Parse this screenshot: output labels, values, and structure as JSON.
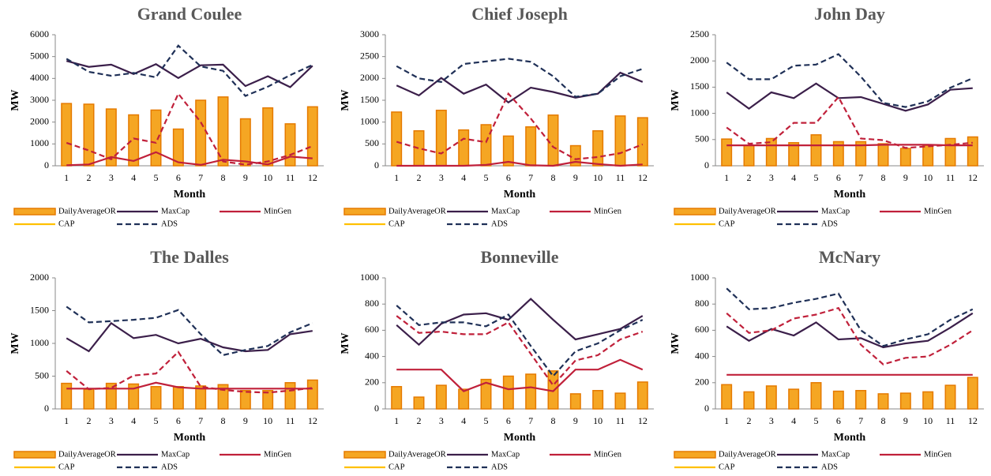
{
  "chart_data": [
    {
      "type": "combo",
      "title": "Grand Coulee",
      "x_label": "Month",
      "y_label": "MW",
      "categories": [
        1,
        2,
        3,
        4,
        5,
        6,
        7,
        8,
        9,
        10,
        11,
        12
      ],
      "ylim": [
        0,
        6000
      ],
      "yticks": [
        0,
        1000,
        2000,
        3000,
        4000,
        5000,
        6000
      ],
      "series": [
        {
          "name": "DailyAverageOR",
          "kind": "bar",
          "color": "#f5a623",
          "values": [
            2850,
            2820,
            2600,
            2330,
            2550,
            1680,
            3000,
            3150,
            2150,
            2650,
            1920,
            2700
          ]
        },
        {
          "name": "MaxCap",
          "kind": "line",
          "color": "#3b1f4a",
          "values": [
            4800,
            4530,
            4630,
            4200,
            4650,
            4020,
            4600,
            4630,
            3650,
            4100,
            3600,
            4580
          ]
        },
        {
          "name": "MinGen",
          "kind": "line",
          "color": "#c0203a",
          "values": [
            20,
            60,
            400,
            220,
            620,
            160,
            40,
            280,
            200,
            60,
            420,
            340
          ]
        },
        {
          "name": "CAP",
          "kind": "line",
          "color": "#ffc000",
          "values": [
            null,
            null,
            null,
            null,
            null,
            null,
            null,
            null,
            null,
            null,
            null,
            null
          ]
        },
        {
          "name": "ADS",
          "kind": "line",
          "dash": true,
          "color": "#1f3057",
          "values": [
            4900,
            4300,
            4120,
            4250,
            4050,
            5500,
            4550,
            4350,
            3200,
            3620,
            4150,
            4620
          ]
        },
        {
          "kind": "line",
          "dash": true,
          "color": "#c0203a",
          "values": [
            1050,
            700,
            300,
            1250,
            1050,
            3300,
            2000,
            200,
            50,
            200,
            500,
            900
          ]
        }
      ]
    },
    {
      "type": "combo",
      "title": "Chief Joseph",
      "x_label": "Month",
      "y_label": "MW",
      "categories": [
        1,
        2,
        3,
        4,
        5,
        6,
        7,
        8,
        9,
        10,
        11,
        12
      ],
      "ylim": [
        0,
        3000
      ],
      "yticks": [
        0,
        500,
        1000,
        1500,
        2000,
        2500,
        3000
      ],
      "series": [
        {
          "name": "DailyAverageOR",
          "kind": "bar",
          "color": "#f5a623",
          "values": [
            1230,
            800,
            1270,
            820,
            940,
            680,
            890,
            1160,
            460,
            800,
            1140,
            1100
          ]
        },
        {
          "name": "MaxCap",
          "kind": "line",
          "color": "#3b1f4a",
          "values": [
            1840,
            1610,
            2010,
            1650,
            1860,
            1450,
            1790,
            1690,
            1560,
            1650,
            2130,
            1920
          ]
        },
        {
          "name": "MinGen",
          "kind": "line",
          "color": "#c0203a",
          "values": [
            0,
            0,
            0,
            0,
            20,
            90,
            10,
            0,
            90,
            40,
            0,
            30
          ]
        },
        {
          "name": "CAP",
          "kind": "line",
          "color": "#ffc000",
          "values": [
            null,
            null,
            null,
            null,
            null,
            null,
            null,
            null,
            null,
            null,
            null,
            null
          ]
        },
        {
          "name": "ADS",
          "kind": "line",
          "dash": true,
          "color": "#1f3057",
          "values": [
            2280,
            2000,
            1920,
            2330,
            2390,
            2450,
            2380,
            2050,
            1580,
            1650,
            2050,
            2220
          ]
        },
        {
          "kind": "line",
          "dash": true,
          "color": "#c0203a",
          "values": [
            550,
            400,
            280,
            620,
            540,
            1650,
            1080,
            430,
            150,
            200,
            290,
            490
          ]
        }
      ]
    },
    {
      "type": "combo",
      "title": "John Day",
      "x_label": "Month",
      "y_label": "MW",
      "categories": [
        1,
        2,
        3,
        4,
        5,
        6,
        7,
        8,
        9,
        10,
        11,
        12
      ],
      "ylim": [
        0,
        2500
      ],
      "yticks": [
        0,
        500,
        1000,
        1500,
        2000,
        2500
      ],
      "series": [
        {
          "name": "DailyAverageOR",
          "kind": "bar",
          "color": "#f5a623",
          "values": [
            510,
            390,
            520,
            440,
            590,
            460,
            460,
            420,
            330,
            390,
            520,
            550
          ]
        },
        {
          "name": "MaxCap",
          "kind": "line",
          "color": "#3b1f4a",
          "values": [
            1400,
            1090,
            1400,
            1290,
            1570,
            1290,
            1310,
            1180,
            1050,
            1170,
            1450,
            1480
          ]
        },
        {
          "name": "MinGen",
          "kind": "line",
          "color": "#c0203a",
          "values": [
            390,
            390,
            390,
            390,
            390,
            390,
            390,
            400,
            400,
            400,
            390,
            390
          ]
        },
        {
          "name": "CAP",
          "kind": "line",
          "color": "#ffc000",
          "values": [
            null,
            null,
            null,
            null,
            null,
            null,
            null,
            null,
            null,
            null,
            null,
            null
          ]
        },
        {
          "name": "ADS",
          "kind": "line",
          "dash": true,
          "color": "#1f3057",
          "values": [
            1970,
            1650,
            1650,
            1910,
            1930,
            2130,
            1700,
            1200,
            1120,
            1230,
            1490,
            1670
          ]
        },
        {
          "kind": "line",
          "dash": true,
          "color": "#c0203a",
          "values": [
            730,
            420,
            450,
            820,
            820,
            1310,
            520,
            490,
            340,
            370,
            400,
            440
          ]
        }
      ]
    },
    {
      "type": "combo",
      "title": "The Dalles",
      "x_label": "Month",
      "y_label": "MW",
      "categories": [
        1,
        2,
        3,
        4,
        5,
        6,
        7,
        8,
        9,
        10,
        11,
        12
      ],
      "ylim": [
        0,
        2000
      ],
      "yticks": [
        0,
        500,
        1000,
        1500,
        2000
      ],
      "series": [
        {
          "name": "DailyAverageOR",
          "kind": "bar",
          "color": "#f5a623",
          "values": [
            390,
            300,
            390,
            380,
            340,
            340,
            350,
            370,
            280,
            280,
            400,
            440
          ]
        },
        {
          "name": "MaxCap",
          "kind": "line",
          "color": "#3b1f4a",
          "values": [
            1080,
            880,
            1310,
            1080,
            1130,
            1000,
            1070,
            940,
            880,
            900,
            1140,
            1190
          ]
        },
        {
          "name": "MinGen",
          "kind": "line",
          "color": "#c0203a",
          "values": [
            310,
            310,
            310,
            310,
            400,
            330,
            310,
            310,
            310,
            310,
            310,
            310
          ]
        },
        {
          "name": "CAP",
          "kind": "line",
          "color": "#ffc000",
          "values": [
            null,
            null,
            null,
            null,
            null,
            null,
            null,
            null,
            null,
            null,
            null,
            null
          ]
        },
        {
          "name": "ADS",
          "kind": "line",
          "dash": true,
          "color": "#1f3057",
          "values": [
            1560,
            1320,
            1340,
            1360,
            1390,
            1510,
            1140,
            820,
            900,
            960,
            1170,
            1310
          ]
        },
        {
          "kind": "line",
          "dash": true,
          "color": "#c0203a",
          "values": [
            580,
            300,
            320,
            510,
            540,
            870,
            340,
            290,
            260,
            250,
            280,
            320
          ]
        }
      ]
    },
    {
      "type": "combo",
      "title": "Bonneville",
      "x_label": "Month",
      "y_label": "MW",
      "categories": [
        1,
        2,
        3,
        4,
        5,
        6,
        7,
        8,
        9,
        10,
        11,
        12
      ],
      "ylim": [
        0,
        1000
      ],
      "yticks": [
        0,
        200,
        400,
        600,
        800,
        1000
      ],
      "series": [
        {
          "name": "DailyAverageOR",
          "kind": "bar",
          "color": "#f5a623",
          "values": [
            170,
            90,
            180,
            150,
            225,
            250,
            265,
            290,
            115,
            140,
            120,
            205
          ]
        },
        {
          "name": "MaxCap",
          "kind": "line",
          "color": "#3b1f4a",
          "values": [
            640,
            490,
            650,
            720,
            730,
            680,
            840,
            680,
            530,
            570,
            610,
            710
          ]
        },
        {
          "name": "MinGen",
          "kind": "line",
          "color": "#c0203a",
          "values": [
            300,
            300,
            300,
            135,
            200,
            150,
            165,
            135,
            300,
            300,
            375,
            300
          ]
        },
        {
          "name": "CAP",
          "kind": "line",
          "color": "#ffc000",
          "values": [
            null,
            null,
            null,
            null,
            null,
            null,
            null,
            null,
            null,
            null,
            null,
            null
          ]
        },
        {
          "name": "ADS",
          "kind": "line",
          "dash": true,
          "color": "#1f3057",
          "values": [
            790,
            640,
            660,
            660,
            630,
            720,
            480,
            250,
            440,
            500,
            600,
            680
          ]
        },
        {
          "kind": "line",
          "dash": true,
          "color": "#c0203a",
          "values": [
            710,
            580,
            590,
            570,
            570,
            660,
            420,
            180,
            370,
            410,
            530,
            590
          ]
        }
      ]
    },
    {
      "type": "combo",
      "title": "McNary",
      "x_label": "Month",
      "y_label": "MW",
      "categories": [
        1,
        2,
        3,
        4,
        5,
        6,
        7,
        8,
        9,
        10,
        11,
        12
      ],
      "ylim": [
        0,
        1000
      ],
      "yticks": [
        0,
        200,
        400,
        600,
        800,
        1000
      ],
      "series": [
        {
          "name": "DailyAverageOR",
          "kind": "bar",
          "color": "#f5a623",
          "values": [
            185,
            130,
            175,
            150,
            200,
            135,
            140,
            115,
            120,
            130,
            180,
            240
          ]
        },
        {
          "name": "MaxCap",
          "kind": "line",
          "color": "#3b1f4a",
          "values": [
            630,
            520,
            610,
            560,
            660,
            530,
            540,
            470,
            500,
            520,
            620,
            730
          ]
        },
        {
          "name": "MinGen",
          "kind": "line",
          "color": "#c0203a",
          "values": [
            260,
            260,
            260,
            260,
            260,
            260,
            260,
            260,
            260,
            260,
            260,
            260
          ]
        },
        {
          "name": "CAP",
          "kind": "line",
          "color": "#ffc000",
          "values": [
            null,
            null,
            null,
            null,
            null,
            null,
            null,
            null,
            null,
            null,
            null,
            null
          ]
        },
        {
          "name": "ADS",
          "kind": "line",
          "dash": true,
          "color": "#1f3057",
          "values": [
            920,
            760,
            770,
            810,
            840,
            880,
            600,
            480,
            530,
            570,
            680,
            760
          ]
        },
        {
          "kind": "line",
          "dash": true,
          "color": "#c0203a",
          "values": [
            730,
            580,
            600,
            690,
            720,
            770,
            490,
            340,
            390,
            400,
            490,
            600
          ]
        }
      ]
    }
  ]
}
